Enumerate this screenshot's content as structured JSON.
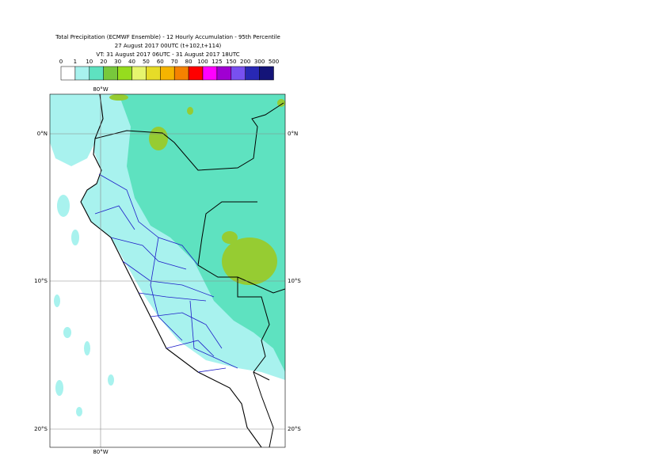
{
  "header": {
    "title": "Total Precipitation (ECMWF Ensemble) - 12 Hourly Accumulation - 95th Percentile",
    "line2": "27 August 2017 00UTC (t+102,t+114)",
    "line3": "VT: 31 August 2017 06UTC - 31 August 2017 18UTC"
  },
  "legend": {
    "labels": [
      0,
      1,
      10,
      20,
      30,
      40,
      50,
      60,
      70,
      80,
      100,
      125,
      150,
      200,
      300,
      500
    ],
    "colors": [
      "#ffffff",
      "#a8f2ee",
      "#5ee2c0",
      "#78c83c",
      "#96dc1e",
      "#e6f56e",
      "#e6dc28",
      "#f5b400",
      "#f58200",
      "#ff0000",
      "#ff00ff",
      "#a000d2",
      "#7850f0",
      "#2828b4",
      "#141478"
    ]
  },
  "map": {
    "lon_top": "80°W",
    "lon_bottom": "80°W",
    "lat_labels": [
      "0°N",
      "10°S",
      "20°S"
    ]
  }
}
